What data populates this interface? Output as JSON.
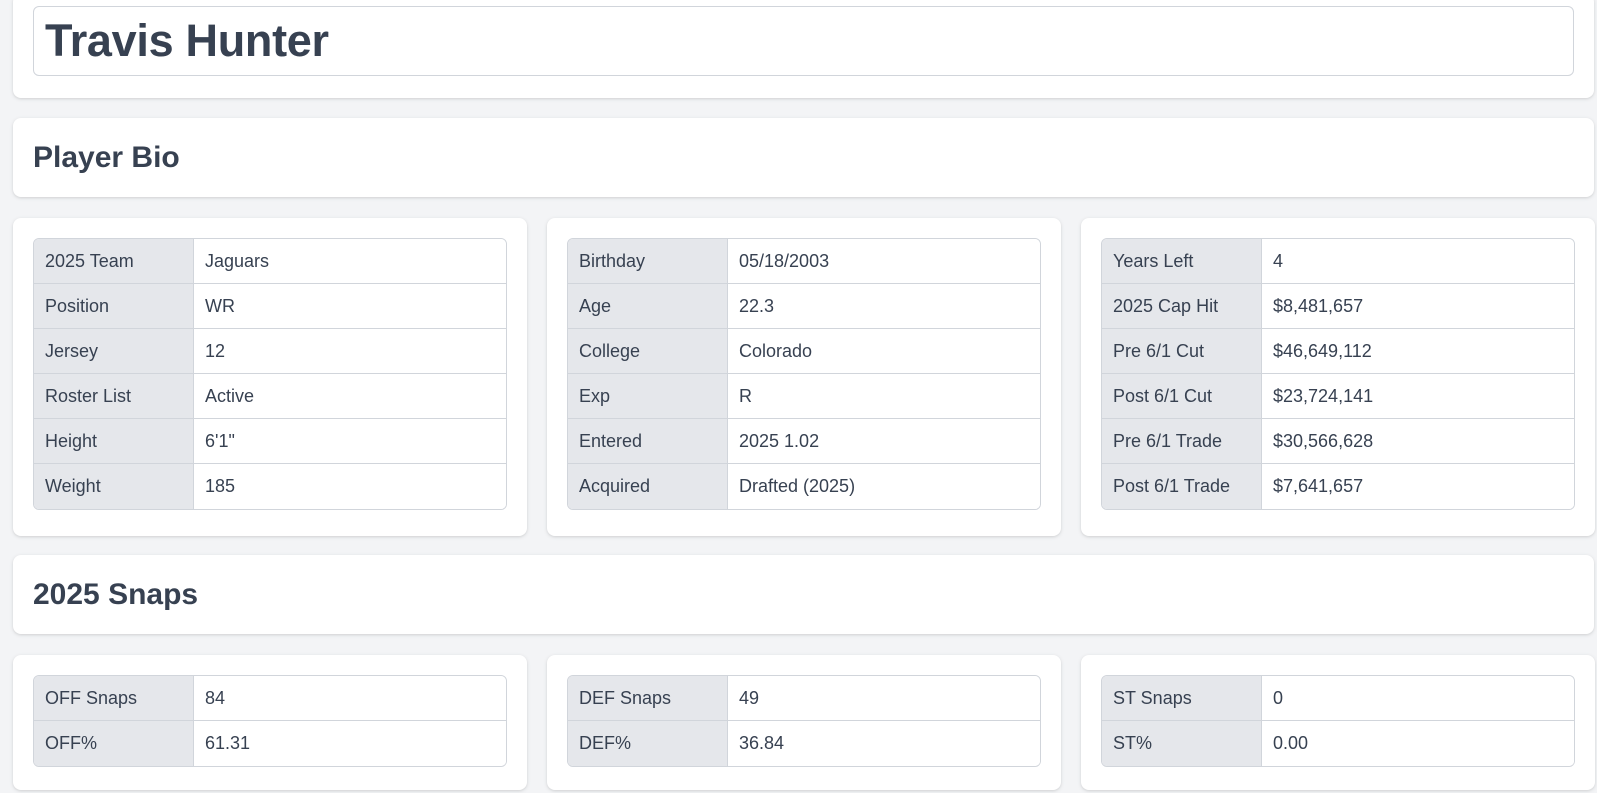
{
  "player": {
    "name": "Travis Hunter"
  },
  "bio": {
    "heading": "Player Bio",
    "tables": [
      [
        {
          "label": "2025 Team",
          "value": "Jaguars"
        },
        {
          "label": "Position",
          "value": "WR"
        },
        {
          "label": "Jersey",
          "value": "12"
        },
        {
          "label": "Roster List",
          "value": "Active"
        },
        {
          "label": "Height",
          "value": "6'1\""
        },
        {
          "label": "Weight",
          "value": "185"
        }
      ],
      [
        {
          "label": "Birthday",
          "value": "05/18/2003"
        },
        {
          "label": "Age",
          "value": "22.3"
        },
        {
          "label": "College",
          "value": "Colorado"
        },
        {
          "label": "Exp",
          "value": "R"
        },
        {
          "label": "Entered",
          "value": "2025 1.02"
        },
        {
          "label": "Acquired",
          "value": "Drafted (2025)"
        }
      ],
      [
        {
          "label": "Years Left",
          "value": "4"
        },
        {
          "label": "2025 Cap Hit",
          "value": "$8,481,657"
        },
        {
          "label": "Pre 6/1 Cut",
          "value": "$46,649,112"
        },
        {
          "label": "Post 6/1 Cut",
          "value": "$23,724,141"
        },
        {
          "label": "Pre 6/1 Trade",
          "value": "$30,566,628"
        },
        {
          "label": "Post 6/1 Trade",
          "value": "$7,641,657"
        }
      ]
    ]
  },
  "snaps": {
    "heading": "2025 Snaps",
    "tables": [
      [
        {
          "label": "OFF Snaps",
          "value": "84"
        },
        {
          "label": "OFF%",
          "value": "61.31"
        }
      ],
      [
        {
          "label": "DEF Snaps",
          "value": "49"
        },
        {
          "label": "DEF%",
          "value": "36.84"
        }
      ],
      [
        {
          "label": "ST Snaps",
          "value": "0"
        },
        {
          "label": "ST%",
          "value": "0.00"
        }
      ]
    ]
  }
}
